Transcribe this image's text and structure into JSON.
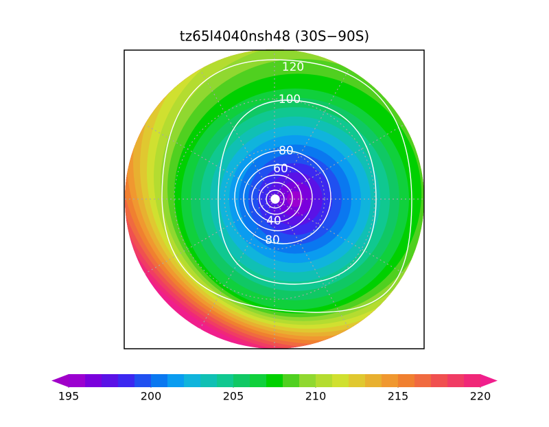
{
  "title": "tz65l4040nsh48 (30S−90S)",
  "contour_labels": [
    "120",
    "100",
    "80",
    "60",
    "40",
    "80"
  ],
  "colorbar": {
    "range": [
      195,
      220
    ],
    "ticks": [
      195,
      200,
      205,
      210,
      215,
      220
    ],
    "under_color": "#a000c8",
    "over_color": "#f01e8c",
    "colors": [
      "#9b00d0",
      "#7a00dc",
      "#5a12e6",
      "#3c28f0",
      "#2050f0",
      "#0a78f0",
      "#0a9cf0",
      "#10b4dc",
      "#10c0b4",
      "#10c890",
      "#10c864",
      "#10d03c",
      "#00d000",
      "#50d020",
      "#90d830",
      "#b4dc30",
      "#d0e030",
      "#e0c830",
      "#e8b030",
      "#f09830",
      "#f08030",
      "#f06a40",
      "#f05050",
      "#f03c64",
      "#f02878"
    ]
  }
}
